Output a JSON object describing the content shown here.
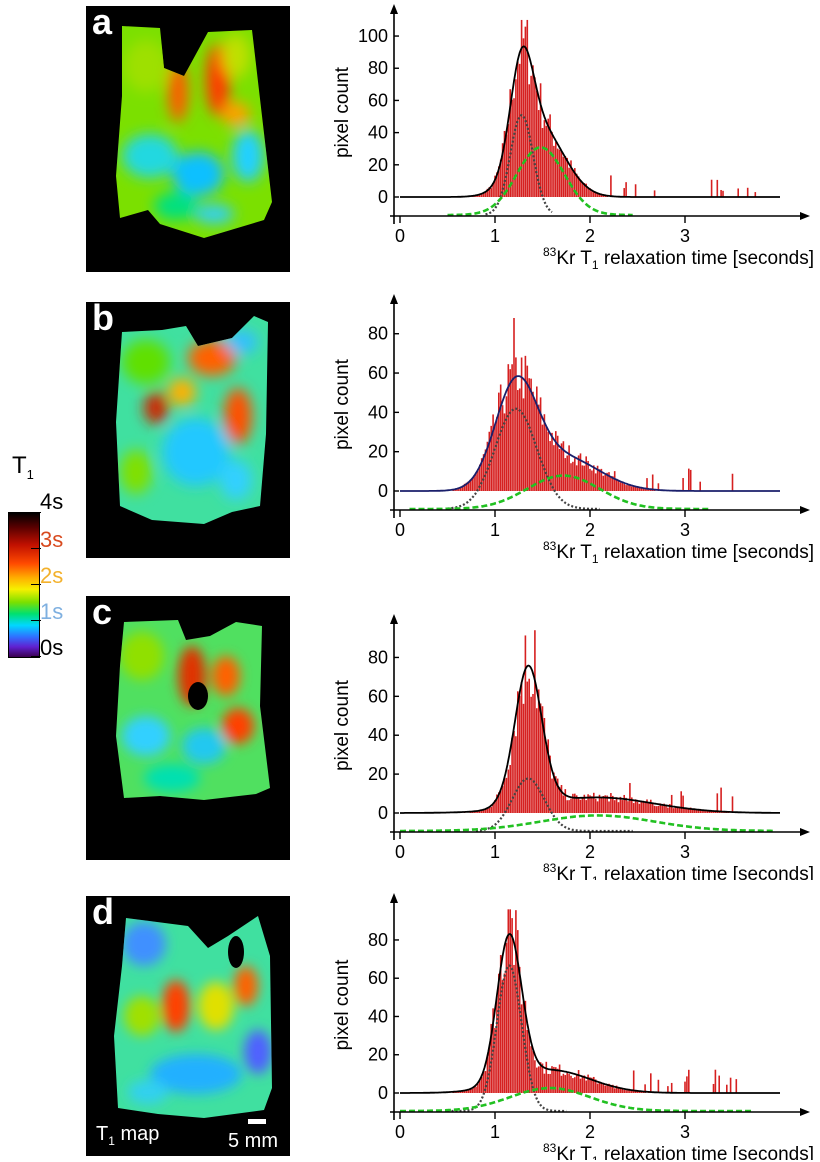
{
  "colorbar": {
    "title": "T",
    "title_sub": "1",
    "labels": [
      {
        "text": "4s",
        "color": "#000000"
      },
      {
        "text": "3s",
        "color": "#d84a1f"
      },
      {
        "text": "2s",
        "color": "#f3b12c"
      },
      {
        "text": "1s",
        "color": "#7fb0e0"
      },
      {
        "text": "0s",
        "color": "#000000"
      }
    ]
  },
  "map_caption": {
    "label": "T",
    "label_sub": "1",
    "label_rest": "map",
    "scale": "5 mm"
  },
  "colors": {
    "histogram": "#d62020",
    "fit_total": "#000000",
    "fit_total_b": "#1a1f6b",
    "component_fast": "#444444",
    "component_slow": "#22c122"
  },
  "chart_data": [
    {
      "panel": "a",
      "type": "bar",
      "xlabel_sup": "83",
      "xlabel": "Kr T",
      "xlabel_sub": "1",
      "xlabel_rest": " relaxation time [seconds]",
      "ylabel": "pixel count",
      "xlim": [
        0,
        4
      ],
      "ylim": [
        0,
        105
      ],
      "xticks": [
        "0",
        "1",
        "2",
        "3"
      ],
      "yticks": [
        "0",
        "20",
        "40",
        "60",
        "80",
        "100"
      ],
      "fit": {
        "fast": {
          "mu": 1.28,
          "sigma": 0.12,
          "amp": 62
        },
        "slow": {
          "mu": 1.48,
          "sigma": 0.25,
          "amp": 42
        }
      },
      "fast_range": [
        0.9,
        1.6
      ],
      "slow_range": [
        0.5,
        2.45
      ],
      "noise": 0.25,
      "max_bar": 110,
      "max_bar_x": 1.28,
      "tail_end": 3.75
    },
    {
      "panel": "b",
      "type": "bar",
      "xlabel_sup": "83",
      "xlabel": "Kr T",
      "xlabel_sub": "1",
      "xlabel_rest": " relaxation time [seconds]",
      "ylabel": "pixel count",
      "xlim": [
        0,
        4
      ],
      "ylim": [
        0,
        88
      ],
      "xticks": [
        "0",
        "1",
        "2",
        "3"
      ],
      "yticks": [
        "0",
        "20",
        "40",
        "60",
        "80"
      ],
      "fit": {
        "fast": {
          "mu": 1.22,
          "sigma": 0.22,
          "amp": 51
        },
        "slow": {
          "mu": 1.72,
          "sigma": 0.38,
          "amp": 17
        }
      },
      "fast_range": [
        0.5,
        2.1
      ],
      "slow_range": [
        0.1,
        3.25
      ],
      "noise": 0.25,
      "max_bar": 88,
      "max_bar_x": 1.2,
      "tail_end": 3.6
    },
    {
      "panel": "c",
      "type": "bar",
      "xlabel_sup": "83",
      "xlabel": "Kr T",
      "xlabel_sub": "1",
      "xlabel_rest": " relaxation time [seconds]",
      "ylabel": "pixel count",
      "xlim": [
        0,
        4
      ],
      "ylim": [
        0,
        90
      ],
      "xticks": [
        "0",
        "1",
        "2",
        "3"
      ],
      "yticks": [
        "0",
        "20",
        "40",
        "60",
        "80"
      ],
      "fit": {
        "fast": {
          "mu": 1.35,
          "sigma": 0.17,
          "amp": 27
        },
        "slow": {
          "mu": 2.08,
          "sigma": 0.6,
          "amp": 8
        }
      },
      "extra": {
        "mu": 1.35,
        "sigma": 0.13,
        "amp": 45
      },
      "fast_range": [
        0.8,
        2.45
      ],
      "slow_range": [
        0.0,
        3.95
      ],
      "noise": 0.3,
      "max_bar": 94,
      "max_bar_x": 1.42,
      "tail_end": 3.95
    },
    {
      "panel": "d",
      "type": "bar",
      "xlabel_sup": "83",
      "xlabel": "Kr T",
      "xlabel_sub": "1",
      "xlabel_rest": " relaxation time [seconds]",
      "ylabel": "pixel count",
      "xlim": [
        0,
        4
      ],
      "ylim": [
        0,
        92
      ],
      "xticks": [
        "0",
        "1",
        "2",
        "3"
      ],
      "yticks": [
        "0",
        "20",
        "40",
        "60",
        "80"
      ],
      "fit": {
        "fast": {
          "mu": 1.15,
          "sigma": 0.13,
          "amp": 76
        },
        "slow": {
          "mu": 1.58,
          "sigma": 0.42,
          "amp": 12
        }
      },
      "fast_range": [
        0.5,
        1.75
      ],
      "slow_range": [
        0.0,
        3.7
      ],
      "noise": 0.28,
      "max_bar": 96,
      "max_bar_x": 1.15,
      "tail_end": 3.65
    }
  ]
}
